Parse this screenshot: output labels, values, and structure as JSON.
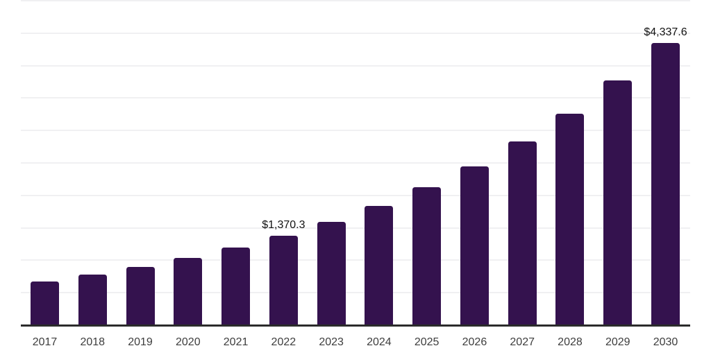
{
  "chart_data": {
    "type": "bar",
    "title": "",
    "xlabel": "",
    "ylabel": "",
    "categories": [
      "2017",
      "2018",
      "2019",
      "2020",
      "2021",
      "2022",
      "2023",
      "2024",
      "2025",
      "2026",
      "2027",
      "2028",
      "2029",
      "2030"
    ],
    "values": [
      667.0,
      770.3,
      889.6,
      1027.4,
      1186.5,
      1370.3,
      1582.6,
      1827.8,
      2111.0,
      2438.1,
      2815.9,
      3252.2,
      3756.1,
      4337.6
    ],
    "labeled_points": [
      {
        "category": "2022",
        "label": "$1,370.3"
      },
      {
        "category": "2030",
        "label": "$4,337.6"
      }
    ],
    "value_prefix": "$",
    "ylim": [
      0,
      5000
    ],
    "gridline_step": 500,
    "grid": true,
    "legend": "none",
    "colors": {
      "bar": "#34124E",
      "gridline": "#f0f0f2",
      "axis_line": "#2b2b2b",
      "tick_label": "#3d3d3d",
      "data_label": "#111111",
      "background": "#ffffff"
    }
  }
}
